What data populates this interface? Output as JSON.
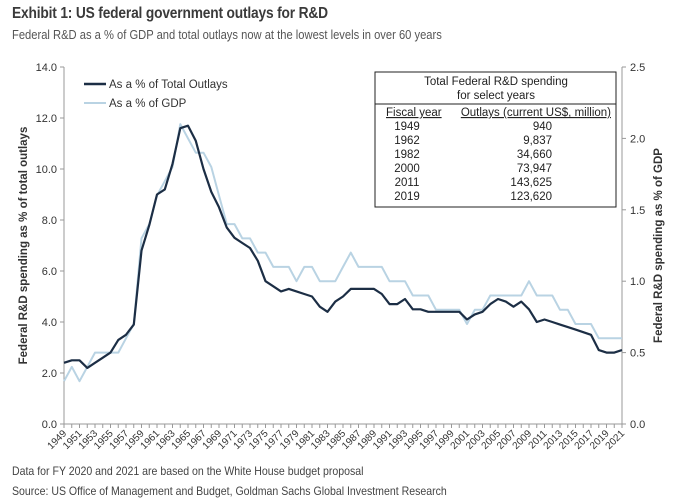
{
  "header": {
    "title": "Exhibit 1: US federal government outlays for R&D",
    "subtitle": "Federal R&D as a % of GDP and total outlays now at the lowest levels in over 60 years"
  },
  "footer": {
    "note": "Data for FY 2020 and 2021 are based on the White House budget proposal",
    "source": "Source: US Office of Management and Budget, Goldman Sachs Global Investment Research"
  },
  "colors": {
    "outlays": "#1c2e45",
    "gdp": "#b9d3e3",
    "axis": "#999999",
    "text": "#333333"
  },
  "inset_table": {
    "title_line1": "Total Federal R&D spending",
    "title_line2": "for select years",
    "headers": [
      "Fiscal year",
      "Outlays (current US$, million)"
    ],
    "rows": [
      [
        "1949",
        "940"
      ],
      [
        "1962",
        "9,837"
      ],
      [
        "1982",
        "34,660"
      ],
      [
        "2000",
        "73,947"
      ],
      [
        "2011",
        "143,625"
      ],
      [
        "2019",
        "123,620"
      ]
    ]
  },
  "chart_data": {
    "type": "line",
    "title": "Exhibit 1: US federal government outlays for R&D",
    "subtitle": "Federal R&D as a % of GDP and total outlays now at the lowest levels in over 60 years",
    "xlabel": "",
    "ylabel": "Federal R&D spending as % of total outlays",
    "y2label": "Federal R&D spending as % of GDP",
    "ylim": [
      0,
      14
    ],
    "y2lim": [
      0,
      2.5
    ],
    "yticks": [
      "0.0",
      "2.0",
      "4.0",
      "6.0",
      "8.0",
      "10.0",
      "12.0",
      "14.0"
    ],
    "y2ticks": [
      "0.0",
      "0.5",
      "1.0",
      "1.5",
      "2.0",
      "2.5"
    ],
    "legend": "top-left",
    "grid": false,
    "x": [
      1949,
      1950,
      1951,
      1952,
      1953,
      1954,
      1955,
      1956,
      1957,
      1958,
      1959,
      1960,
      1961,
      1962,
      1963,
      1964,
      1965,
      1966,
      1967,
      1968,
      1969,
      1970,
      1971,
      1972,
      1973,
      1974,
      1975,
      1976,
      1977,
      1978,
      1979,
      1980,
      1981,
      1982,
      1983,
      1984,
      1985,
      1986,
      1987,
      1988,
      1989,
      1990,
      1991,
      1992,
      1993,
      1994,
      1995,
      1996,
      1997,
      1998,
      1999,
      2000,
      2001,
      2002,
      2003,
      2004,
      2005,
      2006,
      2007,
      2008,
      2009,
      2010,
      2011,
      2012,
      2013,
      2014,
      2015,
      2016,
      2017,
      2018,
      2019,
      2020,
      2021
    ],
    "series": [
      {
        "name": "As a % of Total Outlays",
        "axis": "left",
        "values": [
          2.4,
          2.5,
          2.5,
          2.2,
          2.4,
          2.6,
          2.8,
          3.3,
          3.5,
          3.9,
          6.8,
          7.8,
          9.0,
          9.2,
          10.2,
          11.6,
          11.7,
          11.1,
          10.0,
          9.1,
          8.5,
          7.7,
          7.3,
          7.1,
          6.9,
          6.4,
          5.6,
          5.4,
          5.2,
          5.3,
          5.2,
          5.1,
          5.0,
          4.6,
          4.4,
          4.8,
          5.0,
          5.3,
          5.3,
          5.3,
          5.3,
          5.1,
          4.7,
          4.7,
          4.9,
          4.5,
          4.5,
          4.4,
          4.4,
          4.4,
          4.4,
          4.4,
          4.1,
          4.3,
          4.4,
          4.7,
          4.9,
          4.8,
          4.6,
          4.8,
          4.5,
          4.0,
          4.1,
          4.0,
          3.9,
          3.8,
          3.7,
          3.6,
          3.5,
          2.9,
          2.8,
          2.8,
          2.9
        ]
      },
      {
        "name": "As a % of GDP",
        "axis": "right",
        "values": [
          0.3,
          0.4,
          0.3,
          0.4,
          0.5,
          0.5,
          0.5,
          0.5,
          0.6,
          0.7,
          1.3,
          1.4,
          1.6,
          1.7,
          1.8,
          2.1,
          2.0,
          1.9,
          1.9,
          1.8,
          1.6,
          1.4,
          1.4,
          1.3,
          1.3,
          1.2,
          1.2,
          1.1,
          1.1,
          1.1,
          1.0,
          1.1,
          1.1,
          1.0,
          1.0,
          1.0,
          1.1,
          1.2,
          1.1,
          1.1,
          1.1,
          1.1,
          1.0,
          1.0,
          1.0,
          0.9,
          0.9,
          0.9,
          0.8,
          0.8,
          0.8,
          0.8,
          0.7,
          0.8,
          0.8,
          0.9,
          0.9,
          0.9,
          0.9,
          0.9,
          1.0,
          0.9,
          0.9,
          0.9,
          0.8,
          0.8,
          0.7,
          0.7,
          0.7,
          0.6,
          0.6,
          0.6,
          0.6
        ]
      }
    ]
  }
}
